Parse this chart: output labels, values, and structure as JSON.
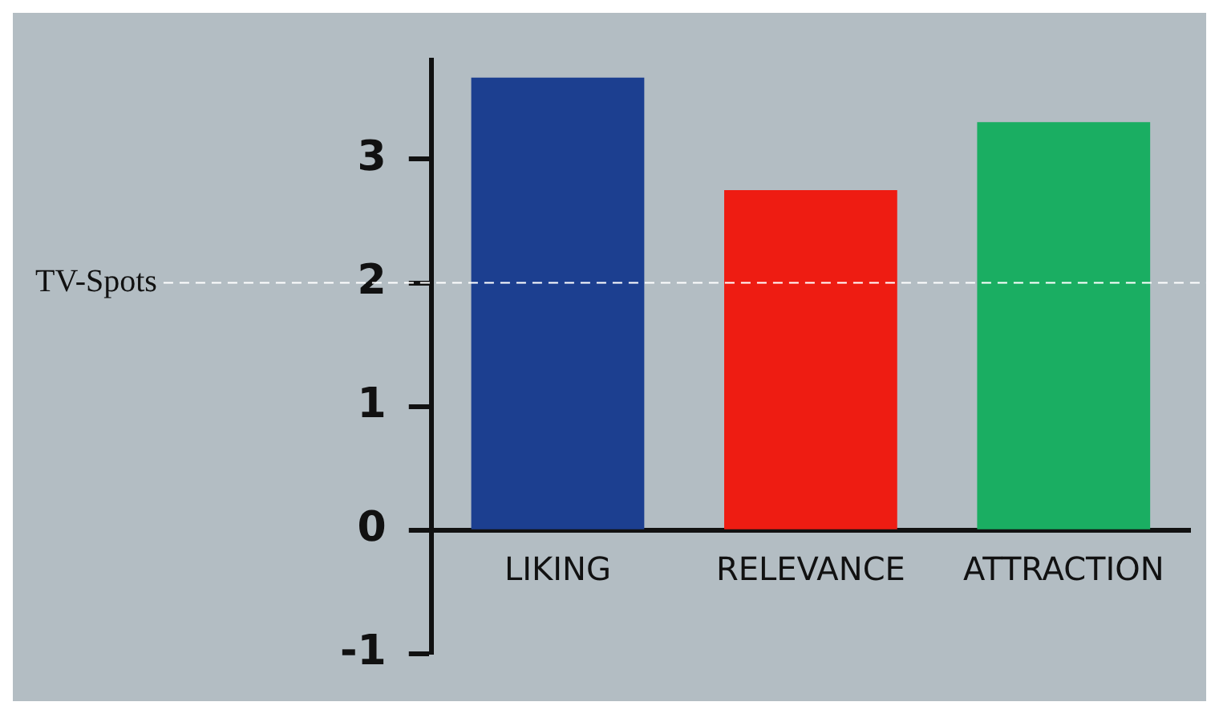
{
  "chart_data": {
    "type": "bar",
    "categories": [
      "LIKING",
      "RELEVANCE",
      "ATTRACTION"
    ],
    "values": [
      3.66,
      2.75,
      3.3
    ],
    "colors": [
      "#1c3f90",
      "#ee1c12",
      "#1aae62"
    ],
    "ylim": [
      -1,
      3.8
    ],
    "yticks": [
      -1,
      0,
      1,
      2,
      3
    ],
    "grid": false,
    "legend": false,
    "ref_lines": [
      {
        "axis": "y",
        "value": 2,
        "label": "TV-Spots",
        "color": "#ffffff",
        "line_style": "dashed"
      }
    ]
  }
}
